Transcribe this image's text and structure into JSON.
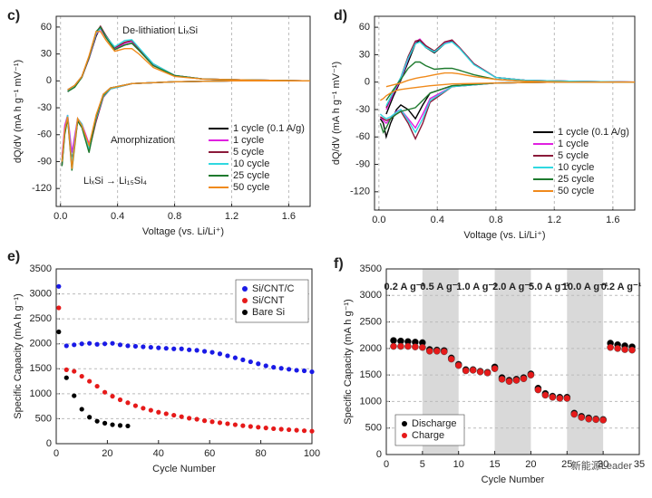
{
  "chart_data": [
    {
      "type": "line",
      "panel": "c)",
      "xlabel": "Voltage (vs. Li/Li⁺)",
      "ylabel": "dQ/dV (mA h g⁻¹ mV⁻¹)",
      "annotations": [
        "De-lithiation LiₓSi",
        "Amorphization",
        "LiₓSi → Li₁₅Si₄"
      ],
      "xlim": [
        -0.03,
        1.75
      ],
      "ylim": [
        -140,
        72
      ],
      "xticks": [
        {
          "value": 0,
          "label": "0.0"
        },
        0.4,
        0.8,
        1.2,
        1.6
      ],
      "yticks": [
        -120,
        -90,
        -60,
        -30,
        0,
        30,
        60
      ],
      "grid": "x",
      "legend": "lower right",
      "x": [
        0.05,
        0.1,
        0.15,
        0.2,
        0.25,
        0.28,
        0.32,
        0.38,
        0.45,
        0.5,
        0.55,
        0.65,
        0.8,
        1.0,
        1.3,
        1.75,
        1.75,
        1.2,
        0.8,
        0.5,
        0.35,
        0.3,
        0.25,
        0.2,
        0.15,
        0.12,
        0.08,
        0.05,
        0.03,
        0.01
      ],
      "series": [
        {
          "name": "1 cycle (0.1 A/g)",
          "color": "#000000",
          "values": [
            -10,
            -5,
            5,
            25,
            50,
            60,
            50,
            35,
            40,
            42,
            35,
            18,
            6,
            2,
            1,
            0,
            0,
            0,
            -1,
            -3,
            -8,
            -15,
            -40,
            -75,
            -50,
            -45,
            -90,
            -40,
            -55,
            -95
          ]
        },
        {
          "name": "1 cycle",
          "color": "#e020e0",
          "values": [
            -12,
            -6,
            4,
            25,
            52,
            58,
            48,
            36,
            42,
            44,
            36,
            18,
            6,
            2,
            1,
            0,
            0,
            0,
            -1,
            -3,
            -9,
            -18,
            -45,
            -70,
            -48,
            -42,
            -80,
            -38,
            -50,
            -85
          ]
        },
        {
          "name": "5 cycle",
          "color": "#8b1a3a",
          "values": [
            -12,
            -6,
            5,
            27,
            54,
            61,
            50,
            37,
            43,
            45,
            36,
            19,
            6,
            2,
            1,
            0,
            0,
            0,
            -1,
            -3,
            -9,
            -18,
            -45,
            -78,
            -50,
            -44,
            -95,
            -40,
            -58,
            -92
          ]
        },
        {
          "name": "10 cycle",
          "color": "#30d8e0",
          "values": [
            -12,
            -6,
            5,
            26,
            53,
            59,
            49,
            38,
            45,
            46,
            37,
            19,
            6,
            2,
            1,
            0,
            0,
            0,
            -1,
            -3,
            -9,
            -17,
            -42,
            -76,
            -48,
            -42,
            -92,
            -38,
            -56,
            -90
          ]
        },
        {
          "name": "25 cycle",
          "color": "#1e7a2e",
          "values": [
            -12,
            -7,
            4,
            26,
            55,
            60,
            48,
            35,
            40,
            42,
            34,
            17,
            6,
            2,
            1,
            0,
            0,
            0,
            -1,
            -3,
            -8,
            -16,
            -40,
            -80,
            -52,
            -45,
            -100,
            -42,
            -60,
            -95
          ]
        },
        {
          "name": "50 cycle",
          "color": "#f08a1c",
          "values": [
            -10,
            -5,
            5,
            28,
            55,
            55,
            45,
            33,
            36,
            36,
            30,
            15,
            5,
            2,
            1,
            0,
            0,
            0,
            -1,
            -3,
            -8,
            -15,
            -38,
            -72,
            -50,
            -42,
            -98,
            -40,
            -55,
            -90
          ]
        }
      ]
    },
    {
      "type": "line",
      "panel": "d)",
      "xlabel": "Voltage (vs. Li/Li⁺)",
      "ylabel": "dQ/dV (mA h g⁻¹ mV⁻¹)",
      "xlim": [
        -0.03,
        1.75
      ],
      "ylim": [
        -140,
        72
      ],
      "xticks": [
        {
          "value": 0,
          "label": "0.0"
        },
        0.4,
        0.8,
        1.2,
        1.6
      ],
      "yticks": [
        -120,
        -90,
        -60,
        -30,
        0,
        30,
        60
      ],
      "grid": "x",
      "legend": "lower right",
      "x": [
        0.05,
        0.1,
        0.15,
        0.2,
        0.25,
        0.28,
        0.32,
        0.38,
        0.45,
        0.5,
        0.55,
        0.65,
        0.8,
        1.0,
        1.3,
        1.75,
        1.75,
        1.2,
        0.8,
        0.5,
        0.35,
        0.3,
        0.25,
        0.2,
        0.15,
        0.12,
        0.08,
        0.05,
        0.03,
        0.01
      ],
      "series": [
        {
          "name": "1 cycle (0.1 A/g)",
          "color": "#000000",
          "values": [
            -35,
            -15,
            2,
            22,
            42,
            46,
            38,
            32,
            42,
            45,
            38,
            20,
            5,
            2,
            1,
            0,
            0,
            0,
            -1,
            -4,
            -12,
            -25,
            -40,
            -30,
            -25,
            -30,
            -45,
            -60,
            -45,
            -40
          ]
        },
        {
          "name": "1 cycle",
          "color": "#e020e0",
          "values": [
            -30,
            -12,
            3,
            25,
            44,
            47,
            40,
            33,
            43,
            46,
            38,
            20,
            5,
            2,
            1,
            0,
            0,
            0,
            -1,
            -5,
            -18,
            -35,
            -50,
            -40,
            -30,
            -32,
            -40,
            -45,
            -42,
            -38
          ]
        },
        {
          "name": "5 cycle",
          "color": "#8b1a3a",
          "values": [
            -28,
            -10,
            5,
            28,
            45,
            46,
            40,
            34,
            44,
            46,
            38,
            20,
            5,
            2,
            1,
            0,
            0,
            0,
            -1,
            -5,
            -22,
            -45,
            -62,
            -45,
            -32,
            -35,
            -40,
            -42,
            -40,
            -38
          ]
        },
        {
          "name": "10 cycle",
          "color": "#30d8e0",
          "values": [
            -26,
            -10,
            5,
            26,
            42,
            44,
            38,
            33,
            42,
            44,
            37,
            19,
            5,
            2,
            1,
            0,
            0,
            0,
            -1,
            -5,
            -20,
            -40,
            -55,
            -42,
            -30,
            -33,
            -38,
            -40,
            -38,
            -35
          ]
        },
        {
          "name": "25 cycle",
          "color": "#1e7a2e",
          "values": [
            -20,
            -8,
            3,
            15,
            22,
            22,
            18,
            14,
            15,
            15,
            13,
            8,
            3,
            1,
            0,
            0,
            0,
            0,
            -1,
            -4,
            -12,
            -20,
            -28,
            -30,
            -32,
            -35,
            -40,
            -50,
            -55,
            -45
          ]
        },
        {
          "name": "50 cycle",
          "color": "#f08a1c",
          "values": [
            -5,
            -3,
            -1,
            2,
            4,
            5,
            6,
            8,
            10,
            10,
            9,
            6,
            3,
            1,
            0,
            0,
            0,
            0,
            -1,
            -2,
            -4,
            -5,
            -6,
            -7,
            -8,
            -9,
            -12,
            -15,
            -18,
            -20
          ]
        }
      ]
    },
    {
      "type": "scatter",
      "panel": "e)",
      "xlabel": "Cycle Number",
      "ylabel": "Specific Capacity (mA h g⁻¹)",
      "xlim": [
        0,
        100
      ],
      "ylim": [
        0,
        3500
      ],
      "xticks": [
        0,
        20,
        40,
        60,
        80,
        100
      ],
      "yticks": [
        0,
        500,
        1000,
        1500,
        2000,
        2500,
        3000,
        3500
      ],
      "grid": "y",
      "legend": "upper right",
      "x": [
        1,
        4,
        7,
        10,
        13,
        16,
        19,
        22,
        25,
        28,
        31,
        34,
        37,
        40,
        43,
        46,
        49,
        52,
        55,
        58,
        61,
        64,
        67,
        70,
        73,
        76,
        79,
        82,
        85,
        88,
        91,
        94,
        97,
        100
      ],
      "series": [
        {
          "name": "Si/CNT/C",
          "color": "#1a1ae6",
          "values": [
            3150,
            1960,
            1980,
            2000,
            2010,
            1990,
            2000,
            2010,
            1980,
            1960,
            1950,
            1940,
            1930,
            1920,
            1910,
            1900,
            1900,
            1880,
            1870,
            1850,
            1830,
            1800,
            1760,
            1720,
            1680,
            1640,
            1600,
            1560,
            1530,
            1510,
            1490,
            1470,
            1460,
            1440
          ]
        },
        {
          "name": "Si/CNT",
          "color": "#e61a1a",
          "values": [
            2720,
            1480,
            1450,
            1350,
            1250,
            1150,
            1030,
            950,
            880,
            820,
            760,
            710,
            670,
            630,
            600,
            570,
            540,
            510,
            490,
            460,
            440,
            420,
            400,
            380,
            360,
            345,
            330,
            315,
            300,
            290,
            280,
            270,
            260,
            250
          ]
        },
        {
          "name": "Bare Si",
          "color": "#000000",
          "values": [
            2240,
            1320,
            960,
            690,
            530,
            450,
            410,
            380,
            365,
            355,
            null,
            null,
            null,
            null,
            null,
            null,
            null,
            null,
            null,
            null,
            null,
            null,
            null,
            null,
            null,
            null,
            null,
            null,
            null,
            null,
            null,
            null,
            null,
            null
          ]
        }
      ]
    },
    {
      "type": "scatter",
      "panel": "f)",
      "xlabel": "Cycle Number",
      "ylabel": "Specific Capacity (mA h g⁻¹)",
      "xlim": [
        0,
        35
      ],
      "ylim": [
        0,
        3500
      ],
      "xticks": [
        0,
        5,
        10,
        15,
        20,
        25,
        30,
        35
      ],
      "yticks": [
        0,
        500,
        1000,
        1500,
        2000,
        2500,
        3000,
        3500
      ],
      "grid": "y",
      "legend": "lower left",
      "shaded": [
        [
          5,
          10
        ],
        [
          15,
          20
        ],
        [
          25,
          30
        ]
      ],
      "rate_labels": [
        "0.2 A g⁻¹",
        "0.5 A g⁻¹",
        "1.0 A g⁻¹",
        "2.0 A g⁻¹",
        "5.0 A g⁻¹",
        "10.0 A g⁻¹",
        "0.2 A g⁻¹"
      ],
      "watermark": "新能源Leader",
      "x": [
        1,
        2,
        3,
        4,
        5,
        6,
        7,
        8,
        9,
        10,
        11,
        12,
        13,
        14,
        15,
        16,
        17,
        18,
        19,
        20,
        21,
        22,
        23,
        24,
        25,
        26,
        27,
        28,
        29,
        30,
        31,
        32,
        33,
        34
      ],
      "series": [
        {
          "name": "Discharge",
          "color": "#000000",
          "values": [
            2150,
            2140,
            2130,
            2120,
            2110,
            1980,
            1970,
            1960,
            1820,
            1700,
            1600,
            1600,
            1570,
            1550,
            1650,
            1450,
            1400,
            1420,
            1450,
            1520,
            1250,
            1150,
            1100,
            1080,
            1080,
            780,
            720,
            690,
            670,
            660,
            2100,
            2070,
            2050,
            2030
          ]
        },
        {
          "name": "Charge",
          "color": "#e61a1a",
          "values": [
            2040,
            2040,
            2040,
            2030,
            2020,
            1950,
            1950,
            1940,
            1800,
            1680,
            1580,
            1590,
            1560,
            1540,
            1620,
            1420,
            1380,
            1400,
            1430,
            1500,
            1220,
            1120,
            1080,
            1060,
            1060,
            760,
            700,
            670,
            660,
            650,
            2020,
            2000,
            1980,
            1970
          ]
        }
      ]
    }
  ]
}
